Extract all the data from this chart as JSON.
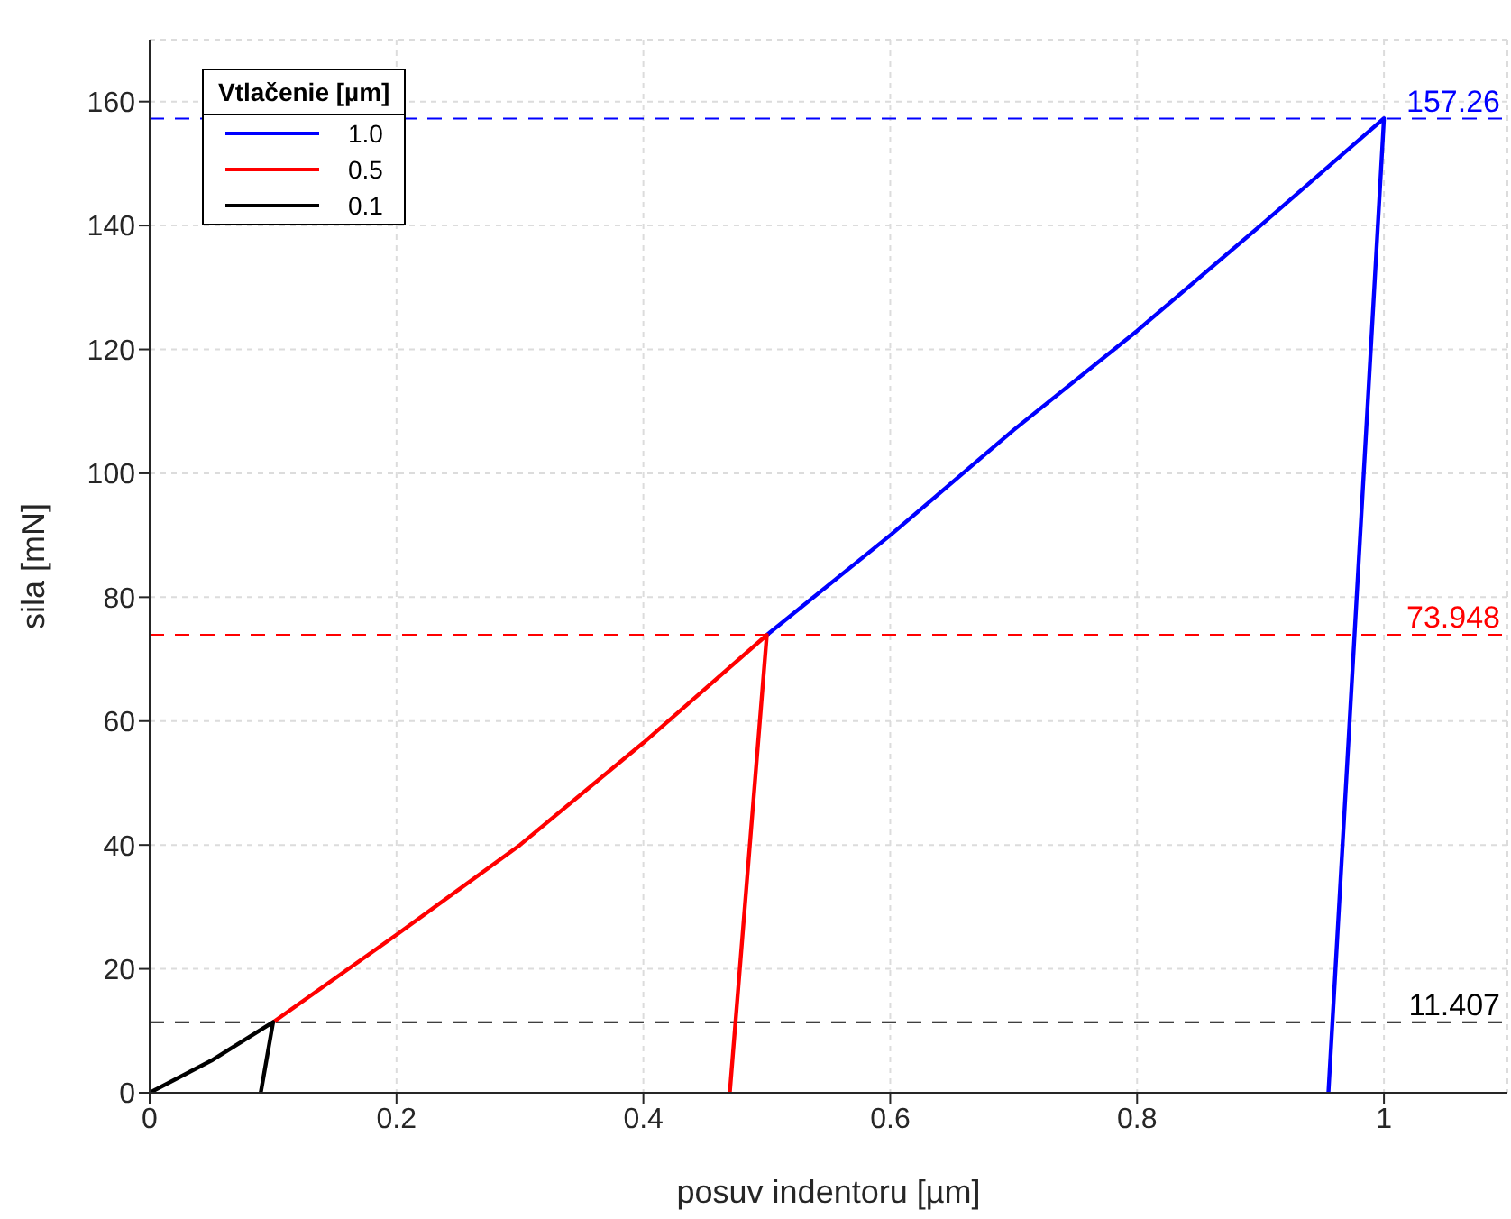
{
  "chart_data": {
    "type": "line",
    "xlabel": "posuv indentoru [µm]",
    "ylabel": "sila [mN]",
    "legend_title": "Vtlačenie [µm]",
    "legend": "top left",
    "grid": true,
    "line_style": "solid",
    "marker": "none",
    "xlim": [
      0,
      1.1
    ],
    "xticks": [
      0,
      0.2,
      0.4,
      0.6,
      0.8,
      1
    ],
    "ylim": [
      0,
      170
    ],
    "yticks": [
      0,
      20,
      40,
      60,
      80,
      100,
      120,
      140,
      160
    ],
    "series": [
      {
        "name": "1.0",
        "color": "#0000ff",
        "x": [
          0.5,
          0.6,
          0.7,
          0.8,
          0.9,
          1,
          0.955
        ],
        "values": [
          73.9,
          90,
          107,
          123,
          140,
          157.3,
          0
        ]
      },
      {
        "name": "0.5",
        "color": "#ff0000",
        "x": [
          0.1,
          0.2,
          0.3,
          0.4,
          0.5,
          0.47
        ],
        "values": [
          11.4,
          25.5,
          40,
          56.5,
          73.9,
          0
        ]
      },
      {
        "name": "0.1",
        "color": "#000000",
        "x": [
          0,
          0.05,
          0.1,
          0.09
        ],
        "values": [
          0,
          5.2,
          11.4,
          0
        ]
      }
    ],
    "ref_lines": [
      {
        "axis": "y",
        "value": 157.26,
        "label": "157.26",
        "color": "#0000ff",
        "line_style": "dashed"
      },
      {
        "axis": "y",
        "value": 73.948,
        "label": "73.948",
        "color": "#ff0000",
        "line_style": "dashed"
      },
      {
        "axis": "y",
        "value": 11.407,
        "label": "11.407",
        "color": "#000000",
        "line_style": "dashed"
      }
    ]
  }
}
